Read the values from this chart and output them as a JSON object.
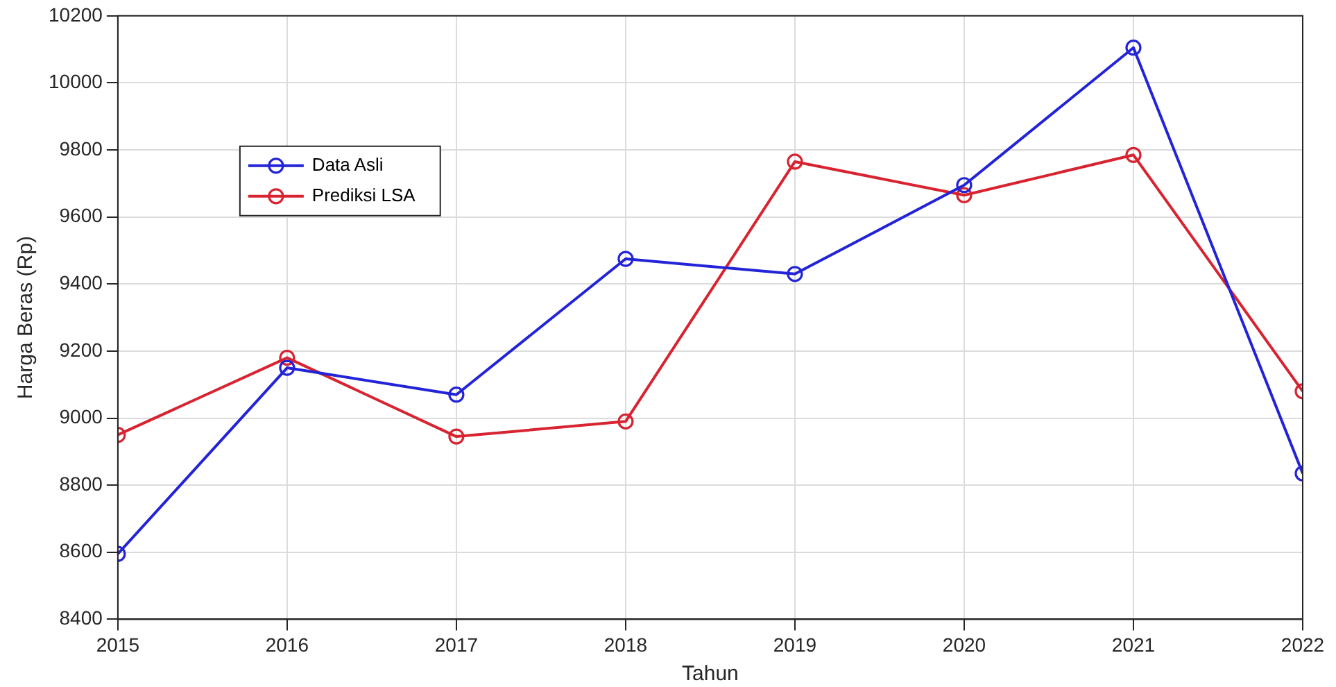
{
  "chart_data": {
    "type": "line",
    "xlabel": "Tahun",
    "ylabel": "Harga Beras (Rp)",
    "x": [
      2015,
      2016,
      2017,
      2018,
      2019,
      2020,
      2021,
      2022
    ],
    "series": [
      {
        "name": "Data Asli",
        "color": "#2323d8",
        "values": [
          8595,
          9150,
          9070,
          9475,
          9430,
          9695,
          10105,
          8835
        ]
      },
      {
        "name": "Prediksi LSA",
        "color": "#d82330",
        "values": [
          8950,
          9180,
          8945,
          8990,
          9765,
          9665,
          9785,
          9080
        ]
      }
    ],
    "xlim": [
      2015,
      2022
    ],
    "xticks": [
      2015,
      2016,
      2017,
      2018,
      2019,
      2020,
      2021,
      2022
    ],
    "ylim": [
      8400,
      10200
    ],
    "yticks": [
      8400,
      8600,
      8800,
      9000,
      9200,
      9400,
      9600,
      9800,
      10000,
      10200
    ],
    "grid": true,
    "legend": "top left",
    "marker": "circle",
    "line_style": "solid"
  }
}
